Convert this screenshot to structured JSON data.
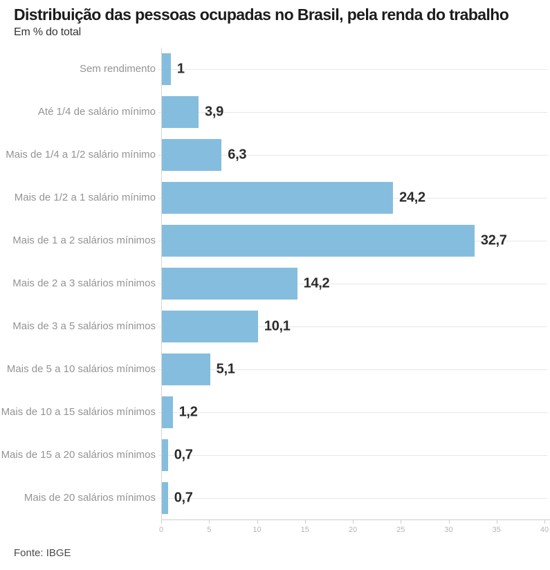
{
  "header": {
    "title": "Distribuição das pessoas ocupadas no Brasil, pela renda do trabalho",
    "subtitle": "Em % do total"
  },
  "footer": {
    "source": "Fonte: IBGE"
  },
  "chart_data": {
    "type": "bar",
    "orientation": "horizontal",
    "title": "Distribuição das pessoas ocupadas no Brasil, pela renda do trabalho",
    "subtitle": "Em % do total",
    "categories": [
      "Sem rendimento",
      "Até 1/4 de salário mínimo",
      "Mais de 1/4 a 1/2 salário mínimo",
      "Mais de 1/2 a 1 salário mínimo",
      "Mais de 1 a 2 salários mínimos",
      "Mais de 2 a 3 salários mínimos",
      "Mais de 3 a 5 salários mínimos",
      "Mais de 5 a 10 salários mínimos",
      "Mais de 10 a 15 salários mínimos",
      "Mais de 15 a 20 salários mínimos",
      "Mais de 20 salários mínimos"
    ],
    "values": [
      1,
      3.9,
      6.3,
      24.2,
      32.7,
      14.2,
      10.1,
      5.1,
      1.2,
      0.7,
      0.7
    ],
    "value_labels": [
      "1",
      "3,9",
      "6,3",
      "24,2",
      "32,7",
      "14,2",
      "10,1",
      "5,1",
      "1,2",
      "0,7",
      "0,7"
    ],
    "xlabel": "",
    "ylabel": "",
    "xlim": [
      0,
      40
    ],
    "x_ticks": [
      0,
      5,
      10,
      15,
      20,
      25,
      30,
      35,
      40
    ],
    "grid": "horizontal-row-lines",
    "legend": "none",
    "bar_color": "#85bdde",
    "source": "Fonte: IBGE"
  }
}
